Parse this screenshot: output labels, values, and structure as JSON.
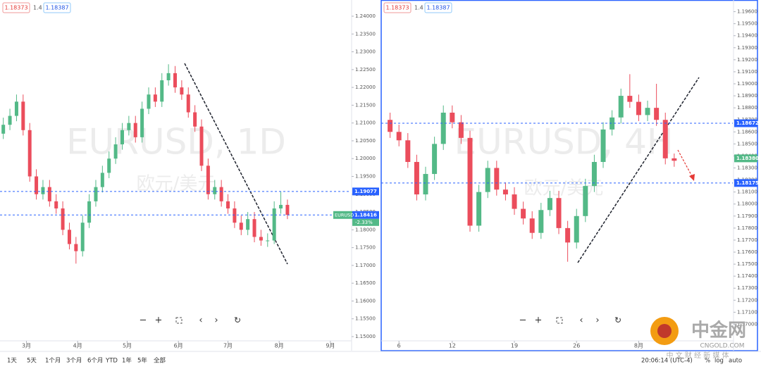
{
  "quote": {
    "bid": 1.18373,
    "spread": 1.4,
    "ask": 1.18387
  },
  "chart_data": [
    {
      "type": "candlestick",
      "watermark": "EURUSD, 1D",
      "watermark_sub": "欧元/美元",
      "up_color": "#53b987",
      "down_color": "#eb4d5c",
      "x": [
        -14,
        -10,
        -6,
        -2,
        2,
        6,
        10,
        14,
        18,
        22,
        26,
        30,
        34,
        38,
        42,
        46,
        50,
        54,
        58,
        62,
        66,
        70,
        74,
        78,
        82,
        86,
        90,
        94,
        98,
        102,
        106,
        110,
        114,
        118,
        122,
        126,
        130,
        134,
        138,
        142,
        146,
        150,
        154,
        158
      ],
      "ohlc": [
        [
          1.207,
          1.2115,
          1.2055,
          1.2095
        ],
        [
          1.2095,
          1.214,
          1.208,
          1.212
        ],
        [
          1.212,
          1.218,
          1.2105,
          1.216
        ],
        [
          1.216,
          1.218,
          1.2065,
          1.208
        ],
        [
          1.208,
          1.21,
          1.1935,
          1.195
        ],
        [
          1.195,
          1.197,
          1.1885,
          1.19
        ],
        [
          1.19,
          1.194,
          1.1885,
          1.192
        ],
        [
          1.192,
          1.194,
          1.1865,
          1.188
        ],
        [
          1.188,
          1.19,
          1.1845,
          1.186
        ],
        [
          1.186,
          1.188,
          1.1785,
          1.18
        ],
        [
          1.18,
          1.182,
          1.1745,
          1.176
        ],
        [
          1.176,
          1.178,
          1.1705,
          1.174
        ],
        [
          1.174,
          1.184,
          1.1725,
          1.182
        ],
        [
          1.182,
          1.19,
          1.1805,
          1.188
        ],
        [
          1.188,
          1.194,
          1.1865,
          1.192
        ],
        [
          1.192,
          1.198,
          1.1905,
          1.196
        ],
        [
          1.196,
          1.202,
          1.1945,
          1.2
        ],
        [
          1.2,
          1.206,
          1.1985,
          1.204
        ],
        [
          1.204,
          1.21,
          1.2025,
          1.208
        ],
        [
          1.208,
          1.212,
          1.2065,
          1.21
        ],
        [
          1.21,
          1.212,
          1.2045,
          1.206
        ],
        [
          1.206,
          1.216,
          1.2045,
          1.214
        ],
        [
          1.214,
          1.22,
          1.2125,
          1.218
        ],
        [
          1.218,
          1.22,
          1.2145,
          1.216
        ],
        [
          1.216,
          1.224,
          1.2145,
          1.222
        ],
        [
          1.222,
          1.2265,
          1.2205,
          1.224
        ],
        [
          1.224,
          1.226,
          1.2185,
          1.22
        ],
        [
          1.22,
          1.222,
          1.2165,
          1.218
        ],
        [
          1.218,
          1.22,
          1.2115,
          1.213
        ],
        [
          1.213,
          1.215,
          1.2075,
          1.209
        ],
        [
          1.209,
          1.211,
          1.1965,
          1.198
        ],
        [
          1.198,
          1.2,
          1.1885,
          1.19
        ],
        [
          1.19,
          1.194,
          1.1885,
          1.192
        ],
        [
          1.192,
          1.194,
          1.1865,
          1.188
        ],
        [
          1.188,
          1.19,
          1.1845,
          1.186
        ],
        [
          1.186,
          1.188,
          1.1805,
          1.182
        ],
        [
          1.182,
          1.184,
          1.1785,
          1.18
        ],
        [
          1.18,
          1.185,
          1.1785,
          1.183
        ],
        [
          1.183,
          1.185,
          1.1765,
          1.178
        ],
        [
          1.178,
          1.18,
          1.1755,
          1.177
        ],
        [
          1.177,
          1.179,
          1.1752,
          1.177
        ],
        [
          1.177,
          1.188,
          1.176,
          1.186
        ],
        [
          1.186,
          1.1907,
          1.1845,
          1.187
        ],
        [
          1.187,
          1.1885,
          1.183,
          1.1842
        ]
      ],
      "xlim": [
        -16,
        196
      ],
      "xticks": [
        {
          "value": 0,
          "label": "3月"
        },
        {
          "value": 31,
          "label": "4月"
        },
        {
          "value": 61,
          "label": "5月"
        },
        {
          "value": 92,
          "label": "6月"
        },
        {
          "value": 122,
          "label": "7月"
        },
        {
          "value": 153,
          "label": "8月"
        },
        {
          "value": 184,
          "label": "9月"
        }
      ],
      "ylim": [
        1.14901,
        1.24455
      ],
      "yticks": [
        {
          "value": 1.15,
          "label": "1.15000"
        },
        {
          "value": 1.155,
          "label": "1.15500"
        },
        {
          "value": 1.16,
          "label": "1.16000"
        },
        {
          "value": 1.165,
          "label": "1.16500"
        },
        {
          "value": 1.17,
          "label": "1.17000"
        },
        {
          "value": 1.175,
          "label": "1.17500"
        },
        {
          "value": 1.18,
          "label": "1.18000"
        },
        {
          "value": 1.185,
          "label": "1.18500"
        },
        {
          "value": 1.19,
          "label": "1.19000"
        },
        {
          "value": 1.195,
          "label": "1.19500"
        },
        {
          "value": 1.2,
          "label": "1.20000"
        },
        {
          "value": 1.205,
          "label": "1.20500"
        },
        {
          "value": 1.21,
          "label": "1.21000"
        },
        {
          "value": 1.215,
          "label": "1.21500"
        },
        {
          "value": 1.22,
          "label": "1.22000"
        },
        {
          "value": 1.225,
          "label": "1.22500"
        },
        {
          "value": 1.23,
          "label": "1.23000"
        },
        {
          "value": 1.235,
          "label": "1.23500"
        },
        {
          "value": 1.24,
          "label": "1.24000"
        }
      ],
      "price_lines": [
        {
          "value": 1.19077,
          "label": "1.19077",
          "color": "#2962ff",
          "line": true
        },
        {
          "value": 1.18416,
          "label": "1.18416",
          "color": "#2962ff",
          "line": true
        }
      ],
      "symbol_tag": "EURUSD",
      "change_label": "-2.33%",
      "tag_color": "#53b987"
    },
    {
      "type": "candlestick",
      "watermark": "EURUSD, 4H",
      "watermark_sub": "欧元/美元",
      "up_color": "#53b987",
      "down_color": "#eb4d5c",
      "x": [
        5,
        6,
        7,
        8,
        9,
        10,
        11,
        12,
        13,
        14,
        15,
        16,
        17,
        18,
        19,
        20,
        21,
        22,
        23,
        24,
        25,
        26,
        27,
        28,
        29,
        30,
        31,
        32,
        33,
        34,
        35,
        36,
        37
      ],
      "ohlc": [
        [
          1.187,
          1.1876,
          1.1855,
          1.186
        ],
        [
          1.186,
          1.1866,
          1.1848,
          1.1853
        ],
        [
          1.1853,
          1.1859,
          1.183,
          1.1835
        ],
        [
          1.1835,
          1.1841,
          1.1803,
          1.1808
        ],
        [
          1.1808,
          1.1831,
          1.1803,
          1.1825
        ],
        [
          1.1825,
          1.1856,
          1.182,
          1.185
        ],
        [
          1.185,
          1.1882,
          1.1845,
          1.1876
        ],
        [
          1.1876,
          1.1882,
          1.1863,
          1.1868
        ],
        [
          1.1868,
          1.1874,
          1.185,
          1.1855
        ],
        [
          1.1855,
          1.1861,
          1.1777,
          1.1782
        ],
        [
          1.1782,
          1.1816,
          1.1777,
          1.181
        ],
        [
          1.181,
          1.1836,
          1.1805,
          1.183
        ],
        [
          1.183,
          1.1836,
          1.1807,
          1.1812
        ],
        [
          1.1812,
          1.1818,
          1.1803,
          1.1808
        ],
        [
          1.1808,
          1.1814,
          1.1791,
          1.1796
        ],
        [
          1.1796,
          1.1802,
          1.1783,
          1.1788
        ],
        [
          1.1788,
          1.1794,
          1.1771,
          1.1776
        ],
        [
          1.1776,
          1.1801,
          1.1771,
          1.1795
        ],
        [
          1.1795,
          1.1811,
          1.179,
          1.1805
        ],
        [
          1.1805,
          1.1811,
          1.1775,
          1.178
        ],
        [
          1.178,
          1.1786,
          1.1752,
          1.1768
        ],
        [
          1.1768,
          1.1796,
          1.1763,
          1.179
        ],
        [
          1.179,
          1.1821,
          1.1785,
          1.1815
        ],
        [
          1.1815,
          1.1841,
          1.181,
          1.1835
        ],
        [
          1.1835,
          1.1868,
          1.183,
          1.1862
        ],
        [
          1.1862,
          1.1878,
          1.1857,
          1.1872
        ],
        [
          1.1872,
          1.1896,
          1.1867,
          1.189
        ],
        [
          1.189,
          1.1908,
          1.188,
          1.1885
        ],
        [
          1.1885,
          1.1891,
          1.1869,
          1.1874
        ],
        [
          1.1874,
          1.1886,
          1.1869,
          1.188
        ],
        [
          1.188,
          1.19,
          1.1865,
          1.187
        ],
        [
          1.187,
          1.1876,
          1.1833,
          1.1838
        ],
        [
          1.1838,
          1.1842,
          1.1831,
          1.1836
        ]
      ],
      "xlim": [
        4,
        43.6
      ],
      "xticks": [
        6,
        12,
        19,
        26,
        {
          "value": 33,
          "label": "8月"
        }
      ],
      "ylim": [
        1.16868,
        1.19697
      ],
      "yticks": [
        {
          "value": 1.17,
          "label": "1.17000"
        },
        {
          "value": 1.171,
          "label": "1.17100"
        },
        {
          "value": 1.172,
          "label": "1.17200"
        },
        {
          "value": 1.173,
          "label": "1.17300"
        },
        {
          "value": 1.174,
          "label": "1.17400"
        },
        {
          "value": 1.175,
          "label": "1.17500"
        },
        {
          "value": 1.176,
          "label": "1.17600"
        },
        {
          "value": 1.177,
          "label": "1.17700"
        },
        {
          "value": 1.178,
          "label": "1.17800"
        },
        {
          "value": 1.179,
          "label": "1.17900"
        },
        {
          "value": 1.18,
          "label": "1.18000"
        },
        {
          "value": 1.181,
          "label": "1.18100"
        },
        {
          "value": 1.182,
          "label": "1.18200"
        },
        {
          "value": 1.183,
          "label": "1.18300"
        },
        {
          "value": 1.184,
          "label": "1.18400"
        },
        {
          "value": 1.185,
          "label": "1.18500"
        },
        {
          "value": 1.186,
          "label": "1.18600"
        },
        {
          "value": 1.187,
          "label": "1.18700"
        },
        {
          "value": 1.188,
          "label": "1.18800"
        },
        {
          "value": 1.189,
          "label": "1.18900"
        },
        {
          "value": 1.19,
          "label": "1.19000"
        },
        {
          "value": 1.191,
          "label": "1.19100"
        },
        {
          "value": 1.192,
          "label": "1.19200"
        },
        {
          "value": 1.193,
          "label": "1.19300"
        },
        {
          "value": 1.194,
          "label": "1.19400"
        },
        {
          "value": 1.195,
          "label": "1.19500"
        },
        {
          "value": 1.196,
          "label": "1.19600"
        }
      ],
      "price_lines": [
        {
          "value": 1.18672,
          "label": "1.18672",
          "color": "#2962ff",
          "line": true
        },
        {
          "value": 1.1838,
          "label": "1.18380",
          "color": "#53b987",
          "line": false
        },
        {
          "value": 1.18175,
          "label": "1.18175",
          "color": "#2962ff",
          "line": true
        }
      ]
    }
  ],
  "toolbar": {
    "ranges": [
      "1天",
      "5天",
      "1个月",
      "3个月",
      "6个月",
      "YTD",
      "1年",
      "5年",
      "全部"
    ],
    "time": "20:06:14 (UTC-4)",
    "options": [
      "%",
      "log",
      "auto"
    ]
  },
  "logo": {
    "name": "中金网",
    "domain": "CNGOLD.COM",
    "slogan": "中 文 财 经 新 媒 体"
  }
}
